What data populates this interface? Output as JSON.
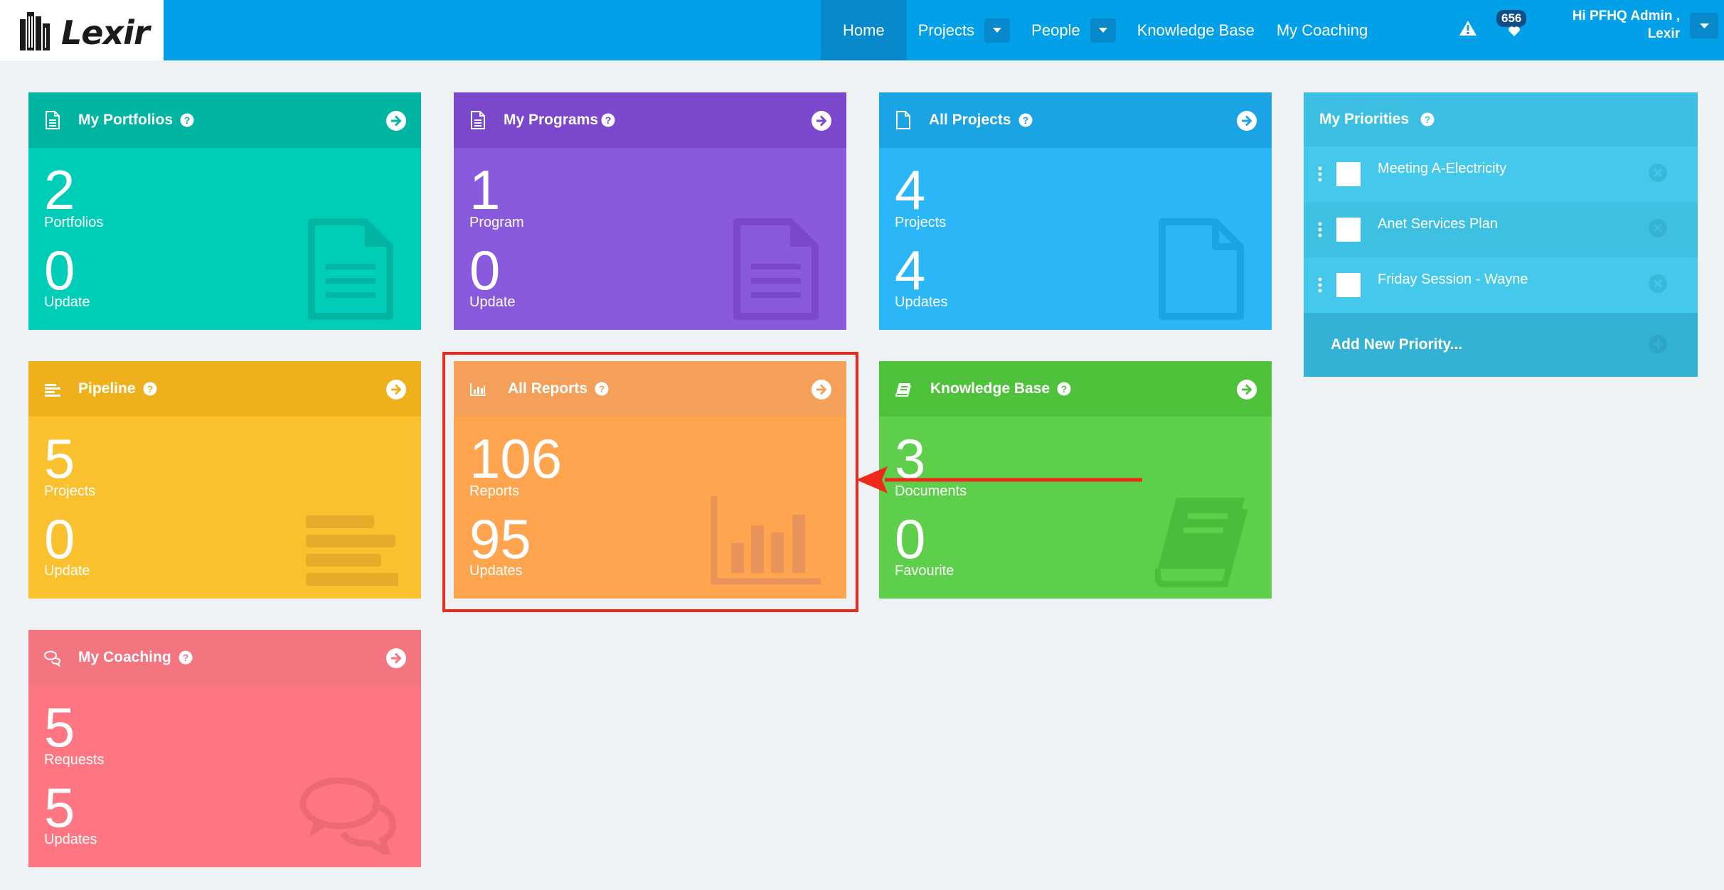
{
  "header": {
    "logo_text": "Lexir",
    "nav": {
      "home": "Home",
      "projects": "Projects",
      "people": "People",
      "knowledge_base": "Knowledge Base",
      "my_coaching": "My Coaching"
    },
    "notification_count": "656",
    "greeting_line1": "Hi PFHQ Admin ,",
    "greeting_line2": "Lexir"
  },
  "tiles": {
    "portfolios": {
      "title": "My Portfolios",
      "count1": "2",
      "label1": "Portfolios",
      "count2": "0",
      "label2": "Update"
    },
    "programs": {
      "title": "My Programs",
      "count1": "1",
      "label1": "Program",
      "count2": "0",
      "label2": "Update"
    },
    "all_projects": {
      "title": "All Projects",
      "count1": "4",
      "label1": "Projects",
      "count2": "4",
      "label2": "Updates"
    },
    "pipeline": {
      "title": "Pipeline",
      "count1": "5",
      "label1": "Projects",
      "count2": "0",
      "label2": "Update"
    },
    "all_reports": {
      "title": "All Reports",
      "count1": "106",
      "label1": "Reports",
      "count2": "95",
      "label2": "Updates"
    },
    "knowledge_base": {
      "title": "Knowledge Base",
      "count1": "3",
      "label1": "Documents",
      "count2": "0",
      "label2": "Favourite"
    },
    "coaching": {
      "title": "My Coaching",
      "count1": "5",
      "label1": "Requests",
      "count2": "5",
      "label2": "Updates"
    }
  },
  "priorities": {
    "title": "My Priorities",
    "items": [
      {
        "label": "Meeting A-Electricity"
      },
      {
        "label": "Anet Services Plan"
      },
      {
        "label": "Friday Session - Wayne"
      }
    ],
    "add_label": "Add New Priority..."
  },
  "colors": {
    "topbar": "#03a0ea",
    "highlight": "#f0291a"
  }
}
